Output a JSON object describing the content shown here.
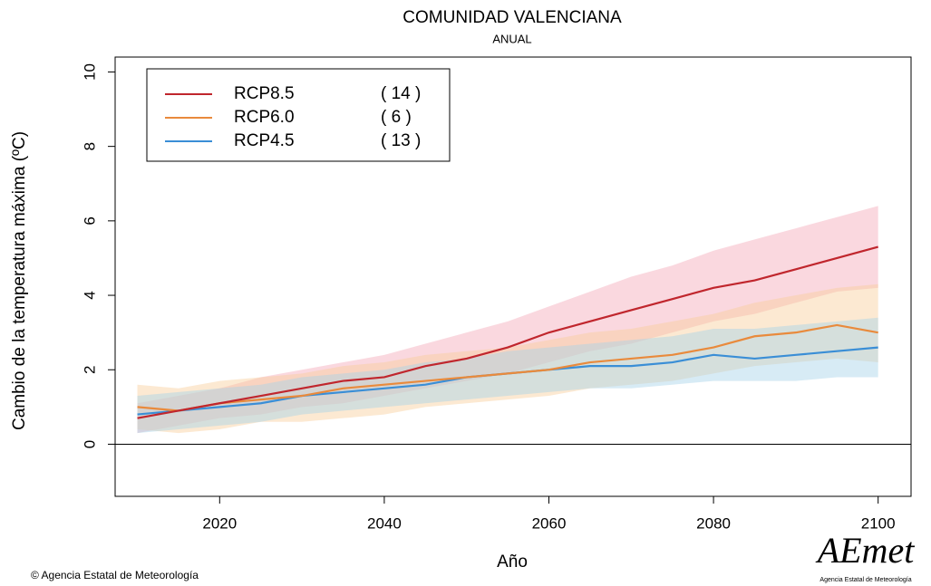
{
  "chart_data": {
    "type": "line_band",
    "title": "COMUNIDAD VALENCIANA",
    "subtitle": "ANUAL",
    "x_label": "Año",
    "y_label": "Cambio de la temperatura máxima (ºC)",
    "x": [
      2010,
      2015,
      2020,
      2025,
      2030,
      2035,
      2040,
      2045,
      2050,
      2055,
      2060,
      2065,
      2070,
      2075,
      2080,
      2085,
      2090,
      2095,
      2100
    ],
    "xlim": [
      2007.3,
      2104
    ],
    "ylim": [
      -1.4,
      10.4
    ],
    "xticks": [
      2020,
      2040,
      2060,
      2080,
      2100
    ],
    "yticks": [
      0,
      2,
      4,
      6,
      8,
      10
    ],
    "reference_line": 0,
    "legend_position": "top-left",
    "series": [
      {
        "name": "RCP8.5",
        "count_label": "( 14 )",
        "color": "#c0262d",
        "band_color": "#f4a9b8",
        "values": [
          0.7,
          0.9,
          1.1,
          1.3,
          1.5,
          1.7,
          1.8,
          2.1,
          2.3,
          2.6,
          3.0,
          3.3,
          3.6,
          3.9,
          4.2,
          4.4,
          4.7,
          5.0,
          5.3
        ],
        "lower": [
          0.3,
          0.5,
          0.7,
          0.8,
          1.0,
          1.1,
          1.3,
          1.5,
          1.7,
          1.9,
          2.2,
          2.5,
          2.7,
          3.0,
          3.3,
          3.5,
          3.8,
          4.1,
          4.2
        ],
        "upper": [
          1.1,
          1.3,
          1.5,
          1.8,
          2.0,
          2.2,
          2.4,
          2.7,
          3.0,
          3.3,
          3.7,
          4.1,
          4.5,
          4.8,
          5.2,
          5.5,
          5.8,
          6.1,
          6.4
        ]
      },
      {
        "name": "RCP6.0",
        "count_label": "(  6 )",
        "color": "#e98a3c",
        "band_color": "#f8cf9c",
        "values": [
          1.0,
          0.9,
          1.1,
          1.2,
          1.3,
          1.5,
          1.6,
          1.7,
          1.8,
          1.9,
          2.0,
          2.2,
          2.3,
          2.4,
          2.6,
          2.9,
          3.0,
          3.2,
          3.0
        ],
        "lower": [
          0.4,
          0.3,
          0.4,
          0.6,
          0.6,
          0.7,
          0.8,
          1.0,
          1.1,
          1.2,
          1.3,
          1.5,
          1.6,
          1.7,
          1.9,
          2.1,
          2.2,
          2.3,
          2.2
        ],
        "upper": [
          1.6,
          1.5,
          1.7,
          1.8,
          1.9,
          2.1,
          2.2,
          2.4,
          2.5,
          2.6,
          2.8,
          3.0,
          3.1,
          3.3,
          3.5,
          3.8,
          4.0,
          4.2,
          4.3
        ]
      },
      {
        "name": "RCP4.5",
        "count_label": "( 13 )",
        "color": "#3a8ed6",
        "band_color": "#a6d3e8",
        "values": [
          0.8,
          0.9,
          1.0,
          1.1,
          1.3,
          1.4,
          1.5,
          1.6,
          1.8,
          1.9,
          2.0,
          2.1,
          2.1,
          2.2,
          2.4,
          2.3,
          2.4,
          2.5,
          2.6
        ],
        "lower": [
          0.3,
          0.4,
          0.5,
          0.6,
          0.8,
          0.9,
          1.0,
          1.1,
          1.2,
          1.3,
          1.4,
          1.5,
          1.5,
          1.6,
          1.7,
          1.7,
          1.7,
          1.8,
          1.8
        ],
        "upper": [
          1.3,
          1.4,
          1.5,
          1.6,
          1.8,
          1.9,
          2.0,
          2.2,
          2.3,
          2.5,
          2.6,
          2.7,
          2.8,
          2.9,
          3.1,
          3.1,
          3.2,
          3.3,
          3.4
        ]
      }
    ]
  },
  "footer": {
    "source": "© Agencia Estatal de Meteorología",
    "logo_text": "AEmet",
    "logo_subtext": "Agencia Estatal de Meteorología"
  }
}
